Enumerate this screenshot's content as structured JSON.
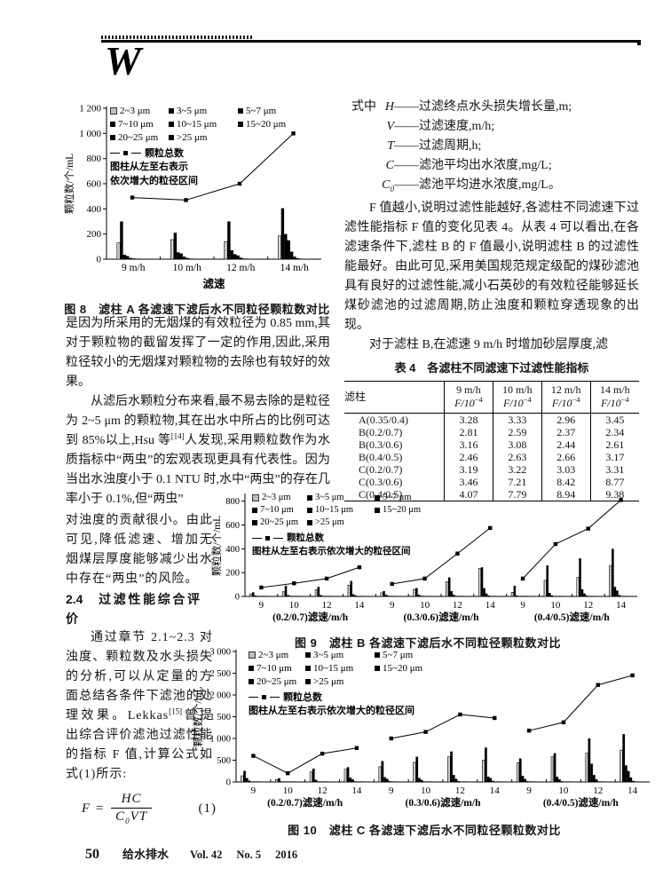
{
  "header": {
    "logo_letter": "W"
  },
  "left_column": {
    "para1": "是因为所采用的无烟煤的有效粒径为 0.85 mm,其对于颗粒物的截留发挥了一定的作用,因此,采用粒径较小的无烟煤对颗粒物的去除也有较好的效果。",
    "para2_a": "从滤后水颗粒分布来看,最不易去除的是粒径为 2~5 μm 的颗粒物,其在出水中所占的比例可达到 85%以上,Hsu 等",
    "para2_ref": "[14]",
    "para2_b": "人发现,采用颗粒数作为水质指标中“两虫”的宏观表现更具有代表性。因为当出水浊度小于 0.1 NTU 时,水中“两虫”的存在几率小于 0.1%,但“两虫”",
    "para3": "对浊度的贡献很小。由此可见,降低滤速、增加无烟煤层厚度能够减少出水中存在“两虫”的风险。",
    "section_number": "2.4",
    "section_title": "过滤性能综合评价",
    "para4_a": "通过章节 2.1~2.3 对浊度、颗粒数及水头损失的分析,可以从定量的方面总结各条件下滤池的处理效果。Lekkas",
    "para4_ref": "[15]",
    "para4_b": "曾提出综合评价滤池过滤性能的指标 F 值,计算公式如式(1)所示:",
    "formula": {
      "lhs_symbol": "F",
      "equals": "=",
      "numerator": "HC",
      "den_c": "C",
      "den_sub": "0",
      "den_rest": "VT",
      "number": "(1)"
    }
  },
  "right_column": {
    "where_label": "式中",
    "dash": "——",
    "definitions": [
      {
        "symbol": "H",
        "sub": "",
        "desc": "过滤终点水头损失增长量,m;"
      },
      {
        "symbol": "V",
        "sub": "",
        "desc": "过滤速度,m/h;"
      },
      {
        "symbol": "T",
        "sub": "",
        "desc": "过滤周期,h;"
      },
      {
        "symbol": "C",
        "sub": "",
        "desc": "滤池平均出水浓度,mg/L;"
      },
      {
        "symbol": "C",
        "sub": "0",
        "desc": "滤池平均进水浓度,mg/L。"
      }
    ],
    "para1": "F 值越小,说明过滤性能越好,各滤柱不同滤速下过滤性能指标 F 值的变化见表 4。从表 4 可以看出,在各滤速条件下,滤柱 B 的 F 值最小,说明滤柱 B 的过滤性能最好。由此可见,采用美国规范规定级配的煤砂滤池具有良好的过滤性能,减小石英砂的有效粒径能够延长煤砂滤池的过滤周期,防止浊度和颗粒穿透现象的出现。",
    "para2": "对于滤柱 B,在滤速 9 m/h 时增加砂层厚度,滤"
  },
  "table4": {
    "title_label": "表 4",
    "title": "各滤柱不同滤速下过滤性能指标",
    "col0_header": "滤柱",
    "speed_headers": [
      "9 m/h",
      "10 m/h",
      "12 m/h",
      "14 m/h"
    ],
    "sub_header_base": "F/10",
    "sub_header_sup": "−4",
    "rows": [
      [
        "A(0.35/0.4)",
        "3.28",
        "3.33",
        "2.96",
        "3.45"
      ],
      [
        "B(0.2/0.7)",
        "2.81",
        "2.59",
        "2.37",
        "2.34"
      ],
      [
        "B(0.3/0.6)",
        "3.16",
        "3.08",
        "2.44",
        "2.61"
      ],
      [
        "B(0.4/0.5)",
        "2.46",
        "2.63",
        "2.66",
        "3.17"
      ],
      [
        "C(0.2/0.7)",
        "3.19",
        "3.22",
        "3.03",
        "3.31"
      ],
      [
        "C(0.3/0.6)",
        "3.46",
        "7.21",
        "8.42",
        "8.77"
      ],
      [
        "C(0.4/0.5)",
        "4.07",
        "7.79",
        "8.94",
        "9.38"
      ]
    ]
  },
  "chart_data": [
    {
      "id": "fig8",
      "type": "bar+line",
      "caption": "图 8　滤柱 A 各滤速下滤后水不同粒径颗粒数对比",
      "ylabel": "颗粒数/个/mL",
      "xlabel": "滤速",
      "ylim": [
        0,
        1200
      ],
      "yticks": [
        0,
        200,
        400,
        600,
        800,
        1000,
        1200
      ],
      "legend_bins": [
        "2~3 μm",
        "3~5 μm",
        "5~7 μm",
        "7~10 μm",
        "10~15 μm",
        "15~20 μm",
        "20~25 μm",
        ">25 μm"
      ],
      "legend_line": "颗粒总数",
      "legend_note": [
        "图柱从左至右表示",
        "依次增大的粒径区间"
      ],
      "groups": [
        {
          "label": "",
          "categories": [
            "9 m/h",
            "10 m/h",
            "12 m/h",
            "14 m/h"
          ],
          "bars": [
            [
              130,
              300,
              35,
              25,
              10,
              6,
              3,
              2
            ],
            [
              155,
              210,
              55,
              45,
              20,
              10,
              5,
              2
            ],
            [
              140,
              300,
              70,
              40,
              30,
              12,
              5,
              2
            ],
            [
              185,
              405,
              200,
              150,
              60,
              20,
              8,
              3
            ]
          ],
          "line_total": [
            490,
            470,
            600,
            1000
          ]
        }
      ]
    },
    {
      "id": "fig9",
      "type": "bar+line",
      "caption": "图 9　滤柱 B 各滤速下滤后水不同粒径颗粒数对比",
      "ylabel": "颗粒数/个/mL",
      "xlabel": "",
      "ylim": [
        0,
        850
      ],
      "yticks": [
        0,
        200,
        400,
        600,
        800
      ],
      "legend_bins": [
        "2~3 μm",
        "3~5 μm",
        "5~7 μm",
        "7~10 μm",
        "10~15 μm",
        "15~20 μm",
        "20~25 μm",
        ">25 μm"
      ],
      "legend_line": "颗粒总数",
      "legend_note": [
        "图柱从左至右表示依次增大的粒径区间"
      ],
      "groups": [
        {
          "label": "(0.2/0.7)滤速/m/h",
          "categories": [
            "9",
            "10",
            "12",
            "14"
          ],
          "bars": [
            [
              20,
              35,
              8,
              3,
              2,
              1,
              1,
              1
            ],
            [
              40,
              90,
              12,
              5,
              2,
              1,
              1,
              1
            ],
            [
              55,
              80,
              12,
              5,
              2,
              1,
              1,
              1
            ],
            [
              95,
              130,
              18,
              8,
              3,
              2,
              1,
              1
            ]
          ],
          "line_total": [
            75,
            110,
            150,
            245
          ]
        },
        {
          "label": "(0.3/0.6)滤速/m/h",
          "categories": [
            "9",
            "10",
            "12",
            "14"
          ],
          "bars": [
            [
              30,
              45,
              15,
              6,
              2,
              1,
              1,
              1
            ],
            [
              60,
              70,
              15,
              6,
              3,
              1,
              1,
              1
            ],
            [
              125,
              160,
              45,
              15,
              5,
              2,
              1,
              1
            ],
            [
              235,
              245,
              70,
              25,
              8,
              3,
              1,
              1
            ]
          ],
          "line_total": [
            105,
            150,
            360,
            575
          ]
        },
        {
          "label": "(0.4/0.5)滤速/m/h",
          "categories": [
            "9",
            "10",
            "12",
            "14"
          ],
          "bars": [
            [
              35,
              90,
              8,
              4,
              2,
              1,
              1,
              1
            ],
            [
              135,
              260,
              30,
              10,
              4,
              2,
              1,
              1
            ],
            [
              160,
              320,
              60,
              25,
              8,
              3,
              1,
              1
            ],
            [
              260,
              400,
              80,
              50,
              12,
              4,
              2,
              1
            ]
          ],
          "line_total": [
            150,
            440,
            570,
            810
          ]
        }
      ]
    },
    {
      "id": "fig10",
      "type": "bar+line",
      "caption": "图 10　滤柱 C 各滤速下滤后水不同粒径颗粒数对比",
      "ylabel": "颗粒数/个/mL",
      "xlabel": "",
      "ylim": [
        0,
        3000
      ],
      "yticks": [
        0,
        500,
        1000,
        1500,
        2000,
        2500,
        3000
      ],
      "legend_bins": [
        "2~3 μm",
        "3~5 μm",
        "5~7 μm",
        "7~10 μm",
        "10~15 μm",
        "15~20 μm",
        "20~25 μm",
        ">25 μm"
      ],
      "legend_line": "颗粒总数",
      "legend_note": [
        "图柱从左至右表示依次增大的粒径区间"
      ],
      "groups": [
        {
          "label": "(0.2/0.7)滤速/m/h",
          "categories": [
            "9",
            "10",
            "12",
            "14"
          ],
          "bars": [
            [
              140,
              255,
              90,
              30,
              10,
              4,
              2,
              1
            ],
            [
              55,
              85,
              15,
              6,
              3,
              1,
              1,
              1
            ],
            [
              230,
              305,
              50,
              15,
              6,
              2,
              1,
              1
            ],
            [
              290,
              340,
              100,
              60,
              15,
              5,
              2,
              1
            ]
          ],
          "line_total": [
            600,
            200,
            650,
            780
          ]
        },
        {
          "label": "(0.3/0.6)滤速/m/h",
          "categories": [
            "9",
            "10",
            "12",
            "14"
          ],
          "bars": [
            [
              350,
              480,
              110,
              70,
              20,
              6,
              2,
              1
            ],
            [
              450,
              580,
              90,
              50,
              15,
              5,
              2,
              1
            ],
            [
              580,
              700,
              160,
              70,
              20,
              6,
              2,
              1
            ],
            [
              500,
              790,
              120,
              90,
              25,
              8,
              2,
              1
            ]
          ],
          "line_total": [
            1000,
            1150,
            1550,
            1470
          ]
        },
        {
          "label": "(0.4/0.5)滤速/m/h",
          "categories": [
            "9",
            "10",
            "12",
            "14"
          ],
          "bars": [
            [
              440,
              540,
              140,
              70,
              20,
              6,
              2,
              1
            ],
            [
              580,
              660,
              120,
              60,
              15,
              5,
              2,
              1
            ],
            [
              660,
              1000,
              420,
              160,
              60,
              15,
              5,
              2
            ],
            [
              730,
              1100,
              380,
              250,
              100,
              25,
              8,
              2
            ]
          ],
          "line_total": [
            1180,
            1370,
            2230,
            2450
          ]
        }
      ]
    }
  ],
  "footer": {
    "page_number": "50",
    "journal": "给水排水",
    "volume": "Vol. 42",
    "issue": "No. 5",
    "year": "2016"
  }
}
